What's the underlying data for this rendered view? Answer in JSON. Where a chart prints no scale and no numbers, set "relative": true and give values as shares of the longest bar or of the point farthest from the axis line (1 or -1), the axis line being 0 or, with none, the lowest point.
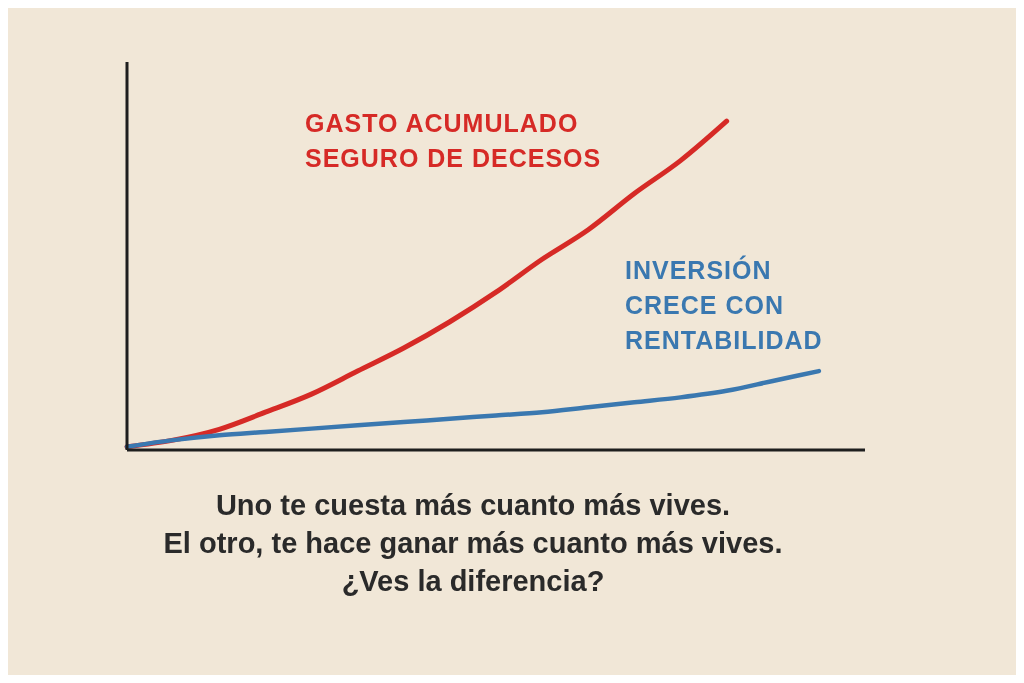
{
  "chart_data": {
    "type": "line",
    "relative": true,
    "marker": "none",
    "line_style": "solid",
    "categories": [
      null,
      null,
      null,
      null,
      null,
      null,
      null,
      null,
      null,
      null,
      null,
      null,
      null,
      null,
      null,
      null,
      null
    ],
    "series": [
      {
        "name": "GASTO ACUMULADO SEGURO DE DECESOS",
        "color": "#d62a26",
        "values": [
          0.01,
          0.03,
          0.063,
          0.115,
          0.17,
          0.24,
          0.31,
          0.39,
          0.48,
          0.58,
          0.67,
          0.78,
          0.88,
          1,
          null,
          null,
          null
        ]
      },
      {
        "name": "INVERSIÓN CRECE CON RENTABILIDAD",
        "color": "#3a78b0",
        "values": [
          0.01,
          0.03,
          0.045,
          0.055,
          0.065,
          0.075,
          0.085,
          0.095,
          0.105,
          0.115,
          0.13,
          0.145,
          0.16,
          0.18,
          0.21,
          0.24,
          null
        ]
      }
    ],
    "annotations": [
      "Uno te cuesta más cuanto más vives.",
      "El otro, te hace ganar más cuanto más vives.",
      "¿Ves la diferencia?"
    ]
  }
}
